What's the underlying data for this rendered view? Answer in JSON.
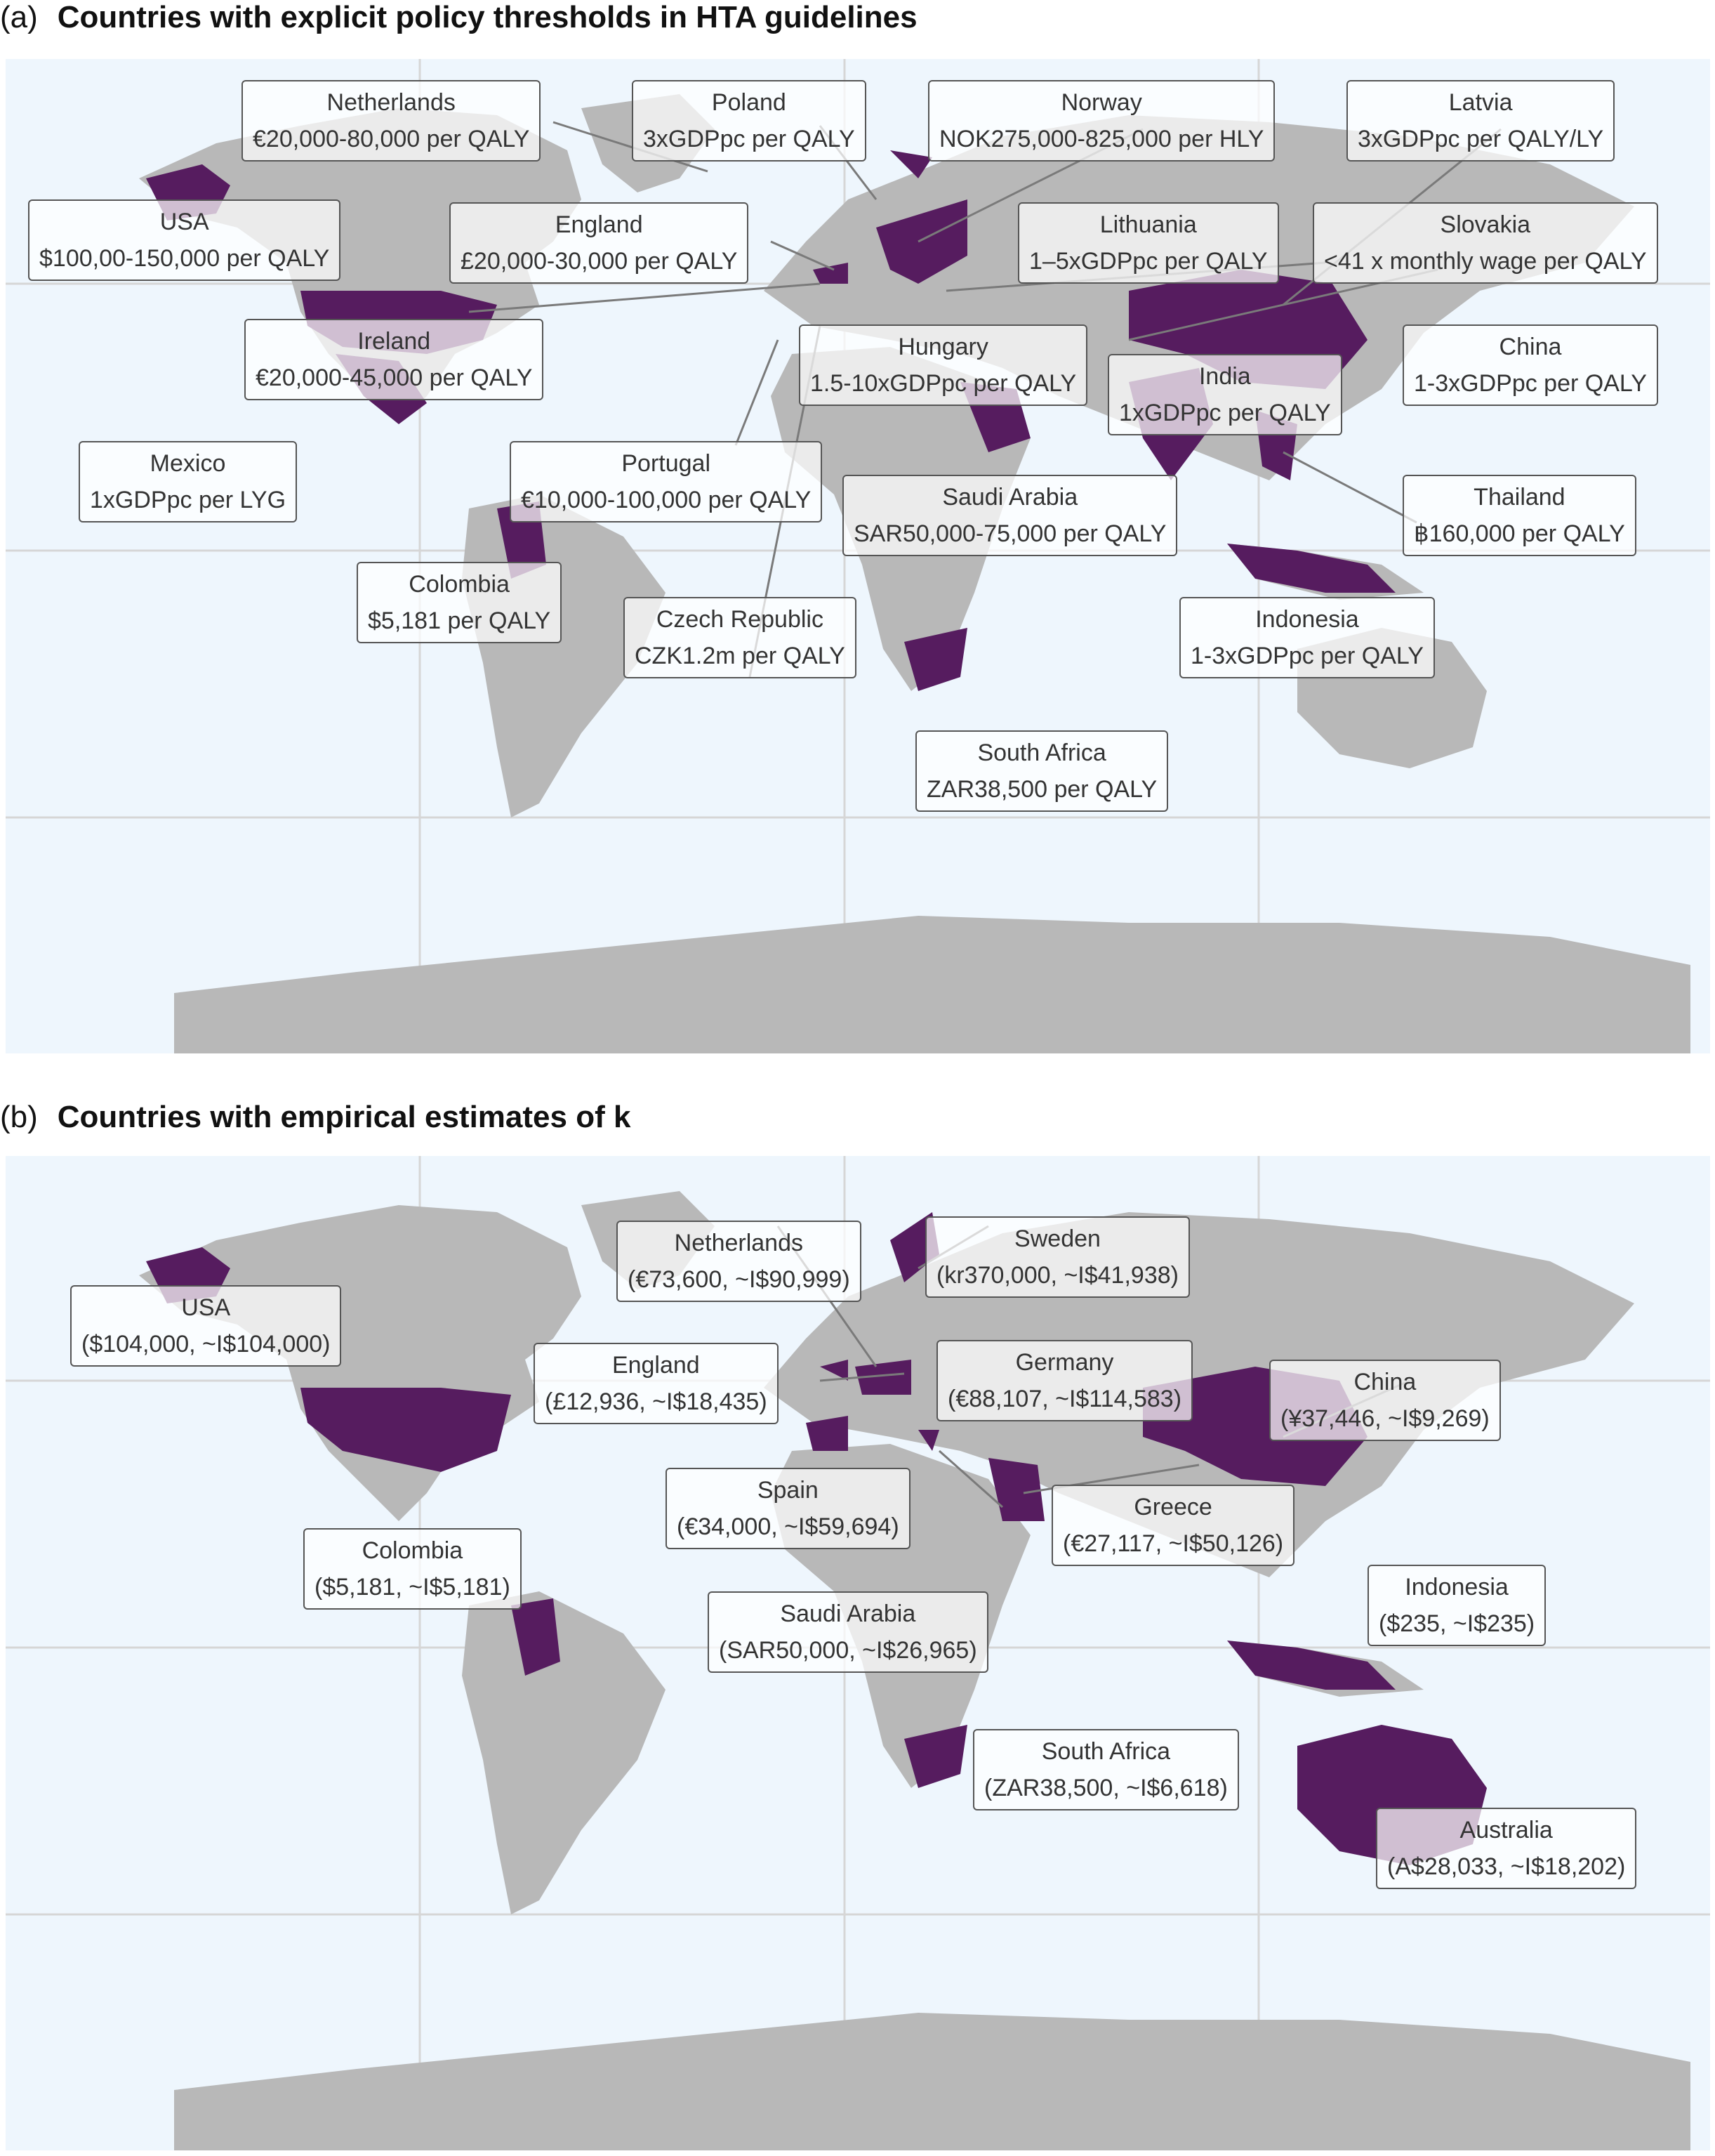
{
  "panels": [
    {
      "letter": "(a)",
      "title": "Countries with explicit policy thresholds in HTA guidelines",
      "labels": [
        {
          "name": "Netherlands",
          "value": "€20,000-80,000 per QALY"
        },
        {
          "name": "Poland",
          "value": "3xGDPpc per QALY"
        },
        {
          "name": "Norway",
          "value": "NOK275,000-825,000 per HLY"
        },
        {
          "name": "Latvia",
          "value": "3xGDPpc per QALY/LY"
        },
        {
          "name": "USA",
          "value": "$100,00-150,000 per QALY"
        },
        {
          "name": "England",
          "value": "£20,000-30,000 per QALY"
        },
        {
          "name": "Lithuania",
          "value": "1–5xGDPpc per QALY"
        },
        {
          "name": "Slovakia",
          "value": "<41 x monthly wage per QALY"
        },
        {
          "name": "Ireland",
          "value": "€20,000-45,000 per QALY"
        },
        {
          "name": "Hungary",
          "value": "1.5-10xGDPpc per QALY"
        },
        {
          "name": "India",
          "value": "1xGDPpc per QALY"
        },
        {
          "name": "China",
          "value": "1-3xGDPpc per QALY"
        },
        {
          "name": "Mexico",
          "value": "1xGDPpc per LYG"
        },
        {
          "name": "Portugal",
          "value": "€10,000-100,000 per QALY"
        },
        {
          "name": "Saudi Arabia",
          "value": "SAR50,000-75,000 per QALY"
        },
        {
          "name": "Thailand",
          "value": "฿160,000 per QALY"
        },
        {
          "name": "Colombia",
          "value": "$5,181 per QALY"
        },
        {
          "name": "Czech Republic",
          "value": "CZK1.2m per QALY"
        },
        {
          "name": "Indonesia",
          "value": "1-3xGDPpc per QALY"
        },
        {
          "name": "South Africa",
          "value": "ZAR38,500 per QALY"
        }
      ]
    },
    {
      "letter": "(b)",
      "title": "Countries with empirical estimates of k",
      "labels": [
        {
          "name": "Netherlands",
          "value": "(€73,600, ~I$90,999)"
        },
        {
          "name": "Sweden",
          "value": "(kr370,000, ~I$41,938)"
        },
        {
          "name": "USA",
          "value": "($104,000, ~I$104,000)"
        },
        {
          "name": "England",
          "value": "(£12,936, ~I$18,435)"
        },
        {
          "name": "Germany",
          "value": "(€88,107, ~I$114,583)"
        },
        {
          "name": "China",
          "value": "(¥37,446, ~I$9,269)"
        },
        {
          "name": "Spain",
          "value": "(€34,000, ~I$59,694)"
        },
        {
          "name": "Greece",
          "value": "(€27,117, ~I$50,126)"
        },
        {
          "name": "Colombia",
          "value": "($5,181, ~I$5,181)"
        },
        {
          "name": "Indonesia",
          "value": "($235, ~I$235)"
        },
        {
          "name": "Saudi Arabia",
          "value": "(SAR50,000, ~I$26,965)"
        },
        {
          "name": "South Africa",
          "value": "(ZAR38,500, ~I$6,618)"
        },
        {
          "name": "Australia",
          "value": "(A$28,033, ~I$18,202)"
        }
      ]
    }
  ],
  "colors": {
    "ocean": "#eef6fd",
    "land": "#b8b8b8",
    "highlight": "#561c5f",
    "grid": "#d6d6d6",
    "leader": "#7a7a7a"
  }
}
